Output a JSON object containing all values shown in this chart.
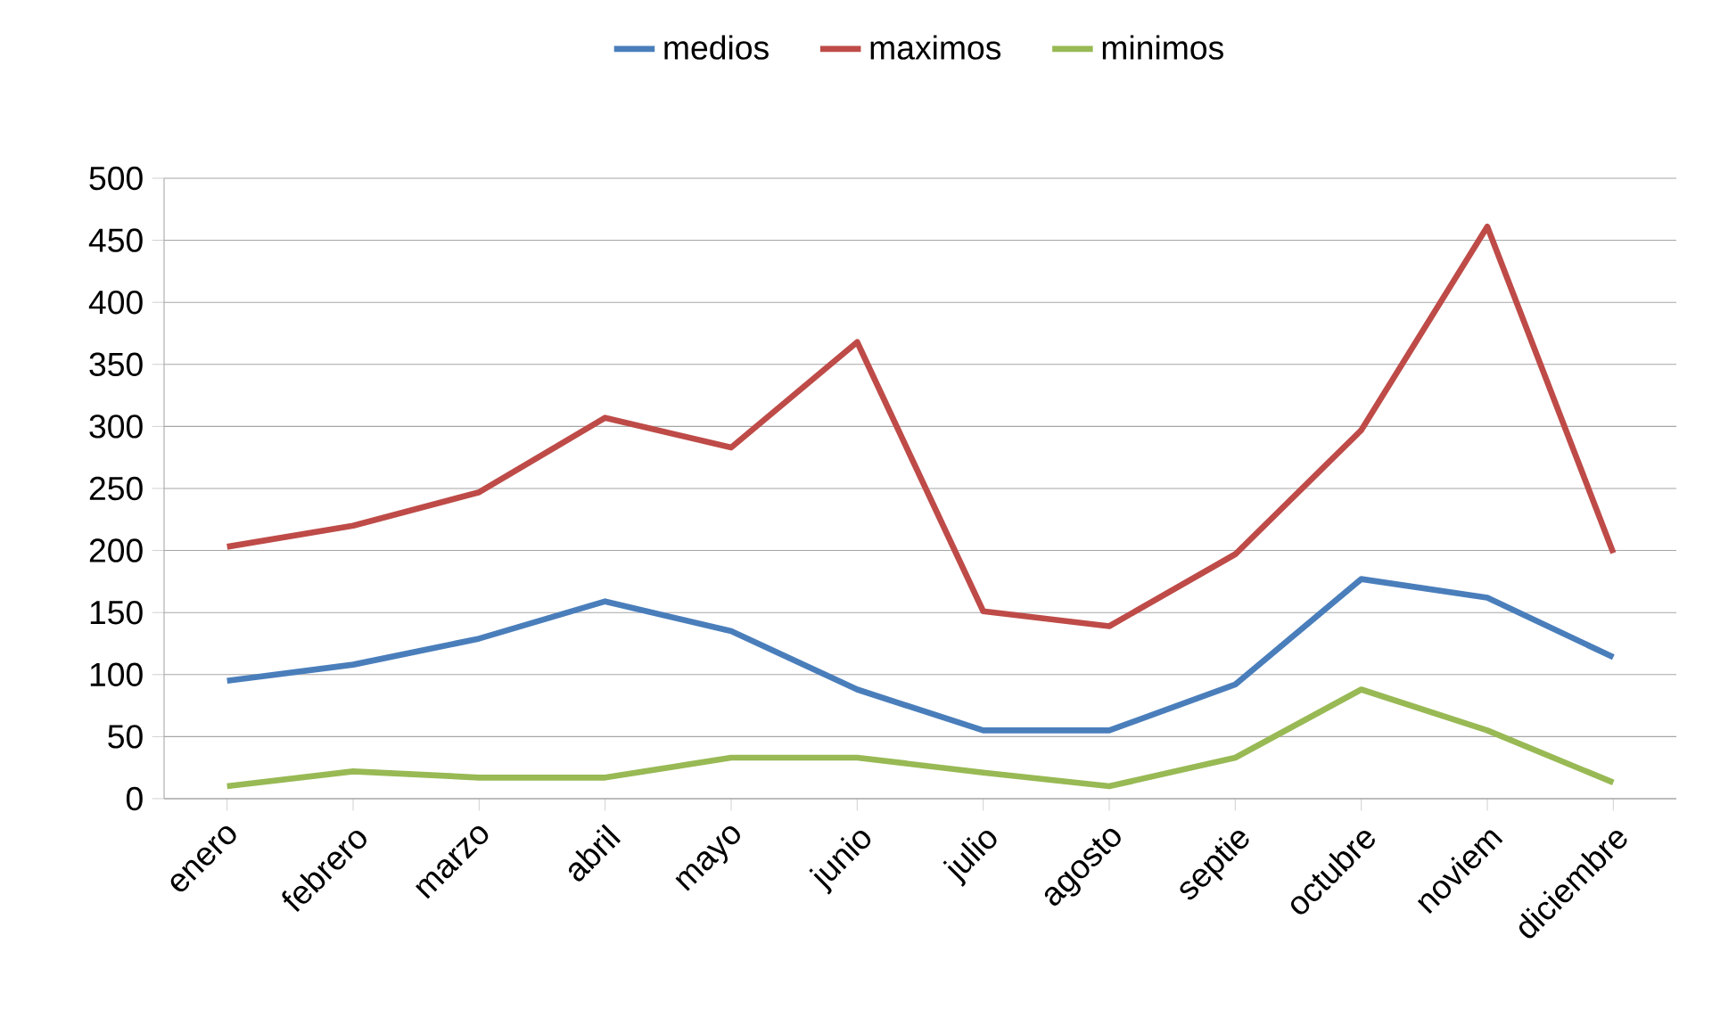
{
  "chart_data": {
    "type": "line",
    "categories": [
      "enero",
      "febrero",
      "marzo",
      "abril",
      "mayo",
      "junio",
      "julio",
      "agosto",
      "septie",
      "octubre",
      "noviem",
      "diciembre"
    ],
    "series": [
      {
        "name": "medios",
        "color": "#4a7ebb",
        "values": [
          95,
          108,
          129,
          159,
          135,
          88,
          55,
          55,
          92,
          177,
          162,
          114
        ]
      },
      {
        "name": "maximos",
        "color": "#be4b48",
        "values": [
          203,
          220,
          247,
          307,
          283,
          368,
          151,
          139,
          197,
          297,
          461,
          198
        ]
      },
      {
        "name": "minimos",
        "color": "#98b954",
        "values": [
          10,
          22,
          17,
          17,
          33,
          33,
          21,
          10,
          33,
          88,
          55,
          13
        ]
      }
    ],
    "ylim": [
      0,
      500
    ],
    "yticks": [
      0,
      50,
      100,
      150,
      200,
      250,
      300,
      350,
      400,
      450,
      500
    ],
    "grid": "y",
    "legend": "top",
    "marker": "none",
    "line_style": "solid"
  }
}
